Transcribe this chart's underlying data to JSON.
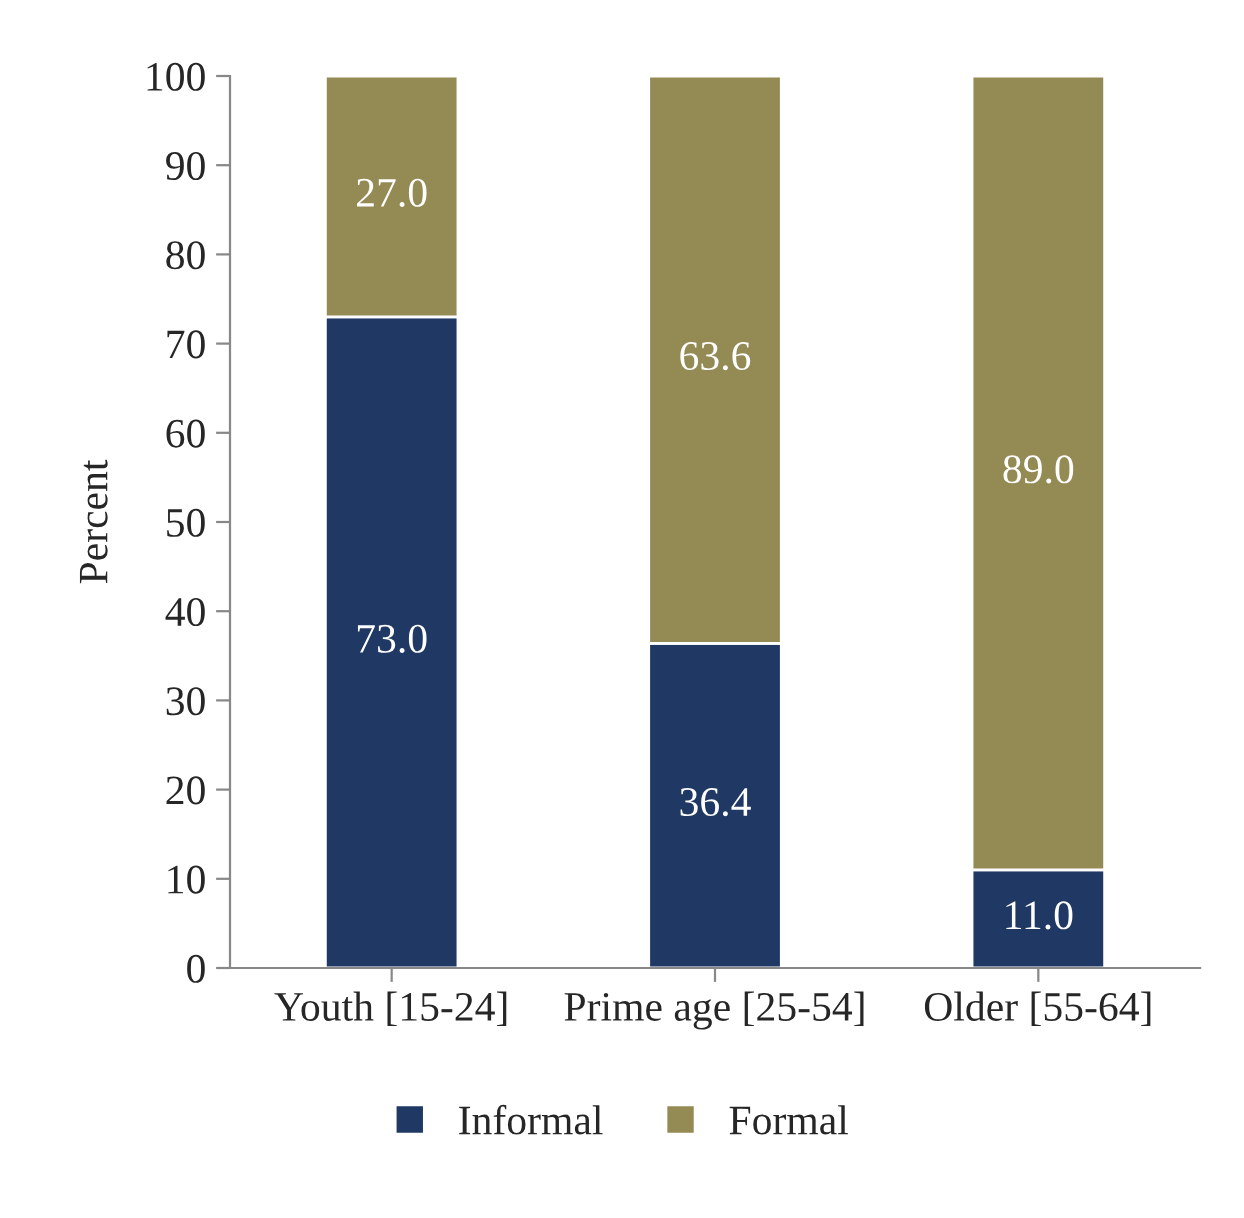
{
  "chart_data": {
    "type": "bar",
    "stacked": true,
    "ylabel": "Percent",
    "categories": [
      "Youth [15-24]",
      "Prime age [25-54]",
      "Older [55-64]"
    ],
    "series": [
      {
        "name": "Informal",
        "color": "#1f3864",
        "values": [
          73.0,
          36.4,
          11.0
        ],
        "value_labels": [
          "73.0",
          "36.4",
          "11.0"
        ]
      },
      {
        "name": "Formal",
        "color": "#948a54",
        "values": [
          27.0,
          63.6,
          89.0
        ],
        "value_labels": [
          "27.0",
          "63.6",
          "89.0"
        ]
      }
    ],
    "ylim": [
      0,
      100
    ],
    "yticks": [
      0,
      10,
      20,
      30,
      40,
      50,
      60,
      70,
      80,
      90,
      100
    ],
    "grid": false,
    "legend": "bottom"
  }
}
